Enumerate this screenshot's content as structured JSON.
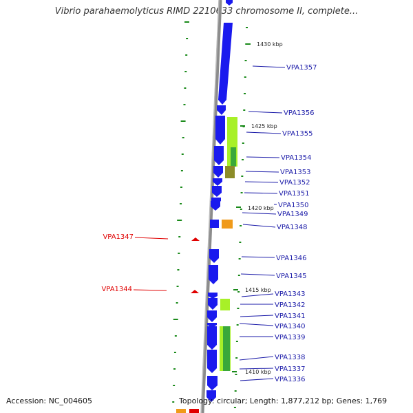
{
  "title": "Vibrio parahaemolyticus RIMD 2210633 chromosome II, complete...",
  "footer": {
    "accession": "Accession: NC_004605",
    "summary": "Topology: circular; Length: 1,877,212 bp; Genes: 1,769"
  },
  "colors": {
    "backbone": "#8c8c8c",
    "gene_blue": "#1a1aee",
    "label_blue": "#1a1aa8",
    "label_red": "#e00000",
    "tick_green": "#1a8a1a",
    "feature_lime": "#a8f028",
    "feature_green": "#3aa83a",
    "feature_olive": "#8c8c28",
    "feature_orange": "#f09a1a"
  },
  "scale_labels": [
    "1430 kbp",
    "1425 kbp",
    "1420 kbp",
    "1415 kbp",
    "1410 kbp"
  ],
  "genes_right": [
    "VPA1357",
    "VPA1356",
    "VPA1355",
    "VPA1354",
    "VPA1353",
    "VPA1352",
    "VPA1351",
    "VPA1350",
    "VPA1349",
    "VPA1348",
    "VPA1346",
    "VPA1345",
    "VPA1343",
    "VPA1342",
    "VPA1341",
    "VPA1340",
    "VPA1339",
    "VPA1338",
    "VPA1337",
    "VPA1336"
  ],
  "genes_left": [
    "VPA1347",
    "VPA1344"
  ]
}
